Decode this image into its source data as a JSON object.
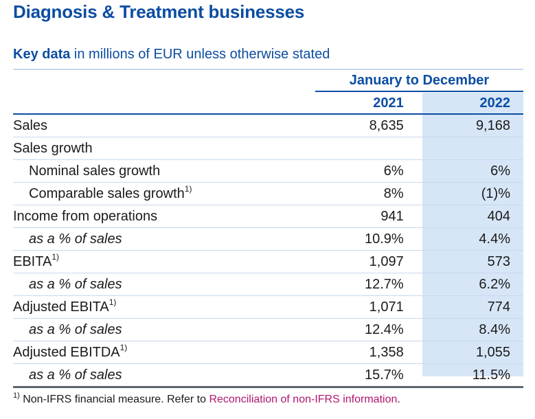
{
  "title": "Diagnosis & Treatment businesses",
  "subtitle": {
    "bold": "Key data",
    "rest": " in millions of EUR unless otherwise stated"
  },
  "period_header": "January to December",
  "years": [
    "2021",
    "2022"
  ],
  "rows": [
    {
      "label": "Sales",
      "sup": "",
      "v2021": "8,635",
      "v2022": "9,168",
      "indent": false,
      "italic": false
    },
    {
      "label": "Sales growth",
      "sup": "",
      "v2021": "",
      "v2022": "",
      "indent": false,
      "italic": false
    },
    {
      "label": "Nominal sales growth",
      "sup": "",
      "v2021": "6%",
      "v2022": "6%",
      "indent": true,
      "italic": false
    },
    {
      "label": "Comparable sales growth",
      "sup": "1)",
      "v2021": "8%",
      "v2022": "(1)%",
      "indent": true,
      "italic": false
    },
    {
      "label": "Income from operations",
      "sup": "",
      "v2021": "941",
      "v2022": "404",
      "indent": false,
      "italic": false
    },
    {
      "label": "as a % of sales",
      "sup": "",
      "v2021": "10.9%",
      "v2022": "4.4%",
      "indent": true,
      "italic": true
    },
    {
      "label": "EBITA",
      "sup": "1)",
      "v2021": "1,097",
      "v2022": "573",
      "indent": false,
      "italic": false
    },
    {
      "label": "as a % of sales",
      "sup": "",
      "v2021": "12.7%",
      "v2022": "6.2%",
      "indent": true,
      "italic": true
    },
    {
      "label": "Adjusted EBITA",
      "sup": "1)",
      "v2021": "1,071",
      "v2022": "774",
      "indent": false,
      "italic": false
    },
    {
      "label": "as a % of sales",
      "sup": "",
      "v2021": "12.4%",
      "v2022": "8.4%",
      "indent": true,
      "italic": true
    },
    {
      "label": "Adjusted EBITDA",
      "sup": "1)",
      "v2021": "1,358",
      "v2022": "1,055",
      "indent": false,
      "italic": false
    },
    {
      "label": "as a % of sales",
      "sup": "",
      "v2021": "15.7%",
      "v2022": "11.5%",
      "indent": true,
      "italic": true
    }
  ],
  "footnote": {
    "marker": "1)",
    "text": " Non-IFRS financial measure. Refer to ",
    "link": "Reconciliation of non-IFRS information",
    "end": "."
  },
  "colors": {
    "heading_blue": "#0b4da2",
    "highlight_column": "#d6e6f7",
    "link_magenta": "#b0166f"
  }
}
